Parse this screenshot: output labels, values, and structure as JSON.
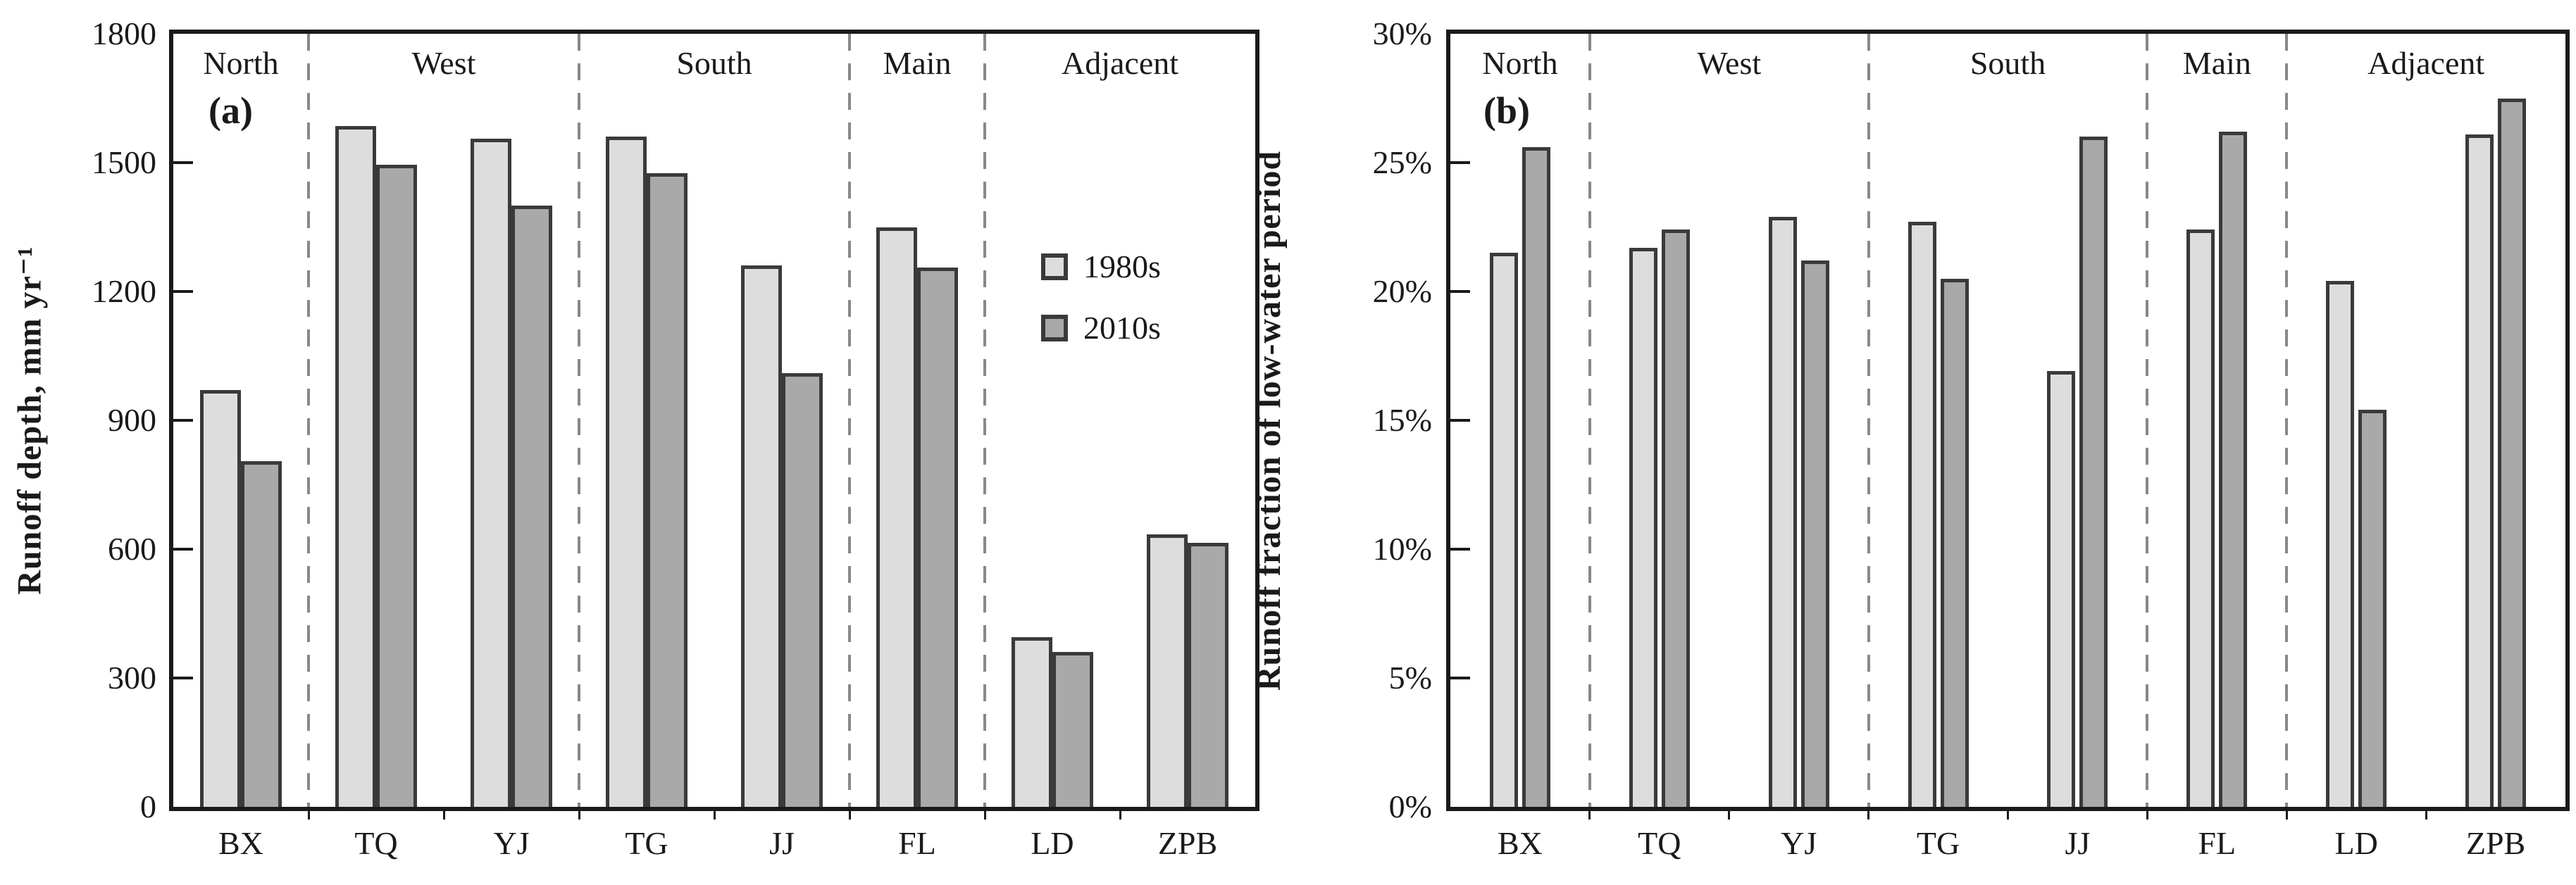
{
  "figure": {
    "background": "#ffffff",
    "panels": [
      "(a)",
      "(b)"
    ]
  },
  "colors": {
    "series_fills": [
      "#dddddd",
      "#a9a9a9"
    ],
    "bar_border": "#3a3a3a",
    "frame": "#1a1a1a",
    "dashed_separator": "#888888",
    "text": "#1a1a1a"
  },
  "chart_data": [
    {
      "type": "bar",
      "panel_label": "(a)",
      "ylabel": "Runoff depth, mm yr⁻¹",
      "xlabel": "",
      "categories": [
        "BX",
        "TQ",
        "YJ",
        "TG",
        "JJ",
        "FL",
        "LD",
        "ZPB"
      ],
      "regions": [
        {
          "label": "North",
          "count": 1
        },
        {
          "label": "West",
          "count": 2
        },
        {
          "label": "South",
          "count": 2
        },
        {
          "label": "Main",
          "count": 1
        },
        {
          "label": "Adjacent",
          "count": 2
        }
      ],
      "series": [
        {
          "name": "1980s",
          "values": [
            970,
            1585,
            1555,
            1560,
            1260,
            1350,
            395,
            635
          ]
        },
        {
          "name": "2010s",
          "values": [
            805,
            1495,
            1400,
            1475,
            1010,
            1255,
            360,
            615
          ]
        }
      ],
      "ylim": [
        0,
        1800
      ],
      "ytick_step": 300,
      "ytick_format": "plain",
      "grid": false,
      "legend_position": "inside-right"
    },
    {
      "type": "bar",
      "panel_label": "(b)",
      "ylabel": "Runoff fraction of low-water period",
      "xlabel": "",
      "categories": [
        "BX",
        "TQ",
        "YJ",
        "TG",
        "JJ",
        "FL",
        "LD",
        "ZPB"
      ],
      "regions": [
        {
          "label": "North",
          "count": 1
        },
        {
          "label": "West",
          "count": 2
        },
        {
          "label": "South",
          "count": 2
        },
        {
          "label": "Main",
          "count": 1
        },
        {
          "label": "Adjacent",
          "count": 2
        }
      ],
      "series": [
        {
          "name": "1980s",
          "values": [
            21.5,
            21.7,
            22.9,
            22.7,
            16.9,
            22.4,
            20.4,
            26.1
          ]
        },
        {
          "name": "2010s",
          "values": [
            25.6,
            22.4,
            21.2,
            20.5,
            26.0,
            26.2,
            15.4,
            27.5
          ]
        }
      ],
      "ylim": [
        0,
        30
      ],
      "ytick_step": 5,
      "ytick_format": "percent",
      "grid": false,
      "legend_position": "none"
    }
  ]
}
